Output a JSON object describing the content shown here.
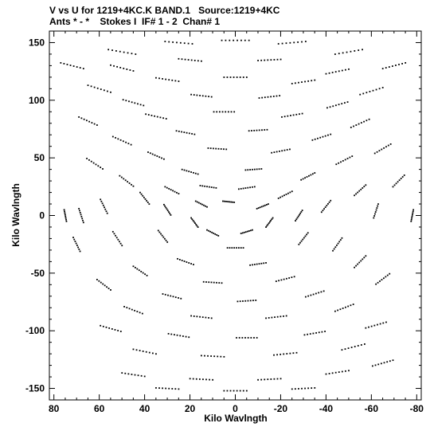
{
  "chart_data": {
    "type": "scatter",
    "title_line1": "V vs U for 1219+4KC.K BAND.1   Source:1219+4KC",
    "title_line2": "Ants * - *    Stokes I  IF# 1 - 2  Chan# 1",
    "xlabel": "Kilo Wavlngth",
    "ylabel": "Kilo Wavlngth",
    "xlim": [
      82,
      -82
    ],
    "ylim": [
      -160,
      160
    ],
    "x_ticks": [
      80,
      60,
      40,
      20,
      0,
      -20,
      -40,
      -60,
      -80
    ],
    "y_ticks": [
      150,
      100,
      50,
      0,
      -50,
      -100,
      -150
    ],
    "x_tick_labels": [
      "80",
      "60",
      "40",
      "20",
      "0",
      "-20",
      "-40",
      "-60",
      "-80"
    ],
    "y_tick_labels": [
      "150",
      "100",
      "50",
      "0",
      "-50",
      "-100",
      "-150"
    ],
    "grid": false,
    "legend": "none",
    "marker_color": "#000000",
    "uv_tracks": [
      {
        "u": 72,
        "v": 130,
        "du": 10,
        "dv": 5
      },
      {
        "u": 50,
        "v": 142,
        "du": 12,
        "dv": 4
      },
      {
        "u": 25,
        "v": 150,
        "du": 12,
        "dv": 2
      },
      {
        "u": 0,
        "v": 152,
        "du": 12,
        "dv": 0
      },
      {
        "u": -25,
        "v": 150,
        "du": 12,
        "dv": -2
      },
      {
        "u": -50,
        "v": 142,
        "du": 12,
        "dv": -4
      },
      {
        "u": -70,
        "v": 130,
        "du": 10,
        "dv": -5
      },
      {
        "u": 50,
        "v": 128,
        "du": 10,
        "dv": 5
      },
      {
        "u": 20,
        "v": 135,
        "du": 10,
        "dv": 2
      },
      {
        "u": -15,
        "v": 135,
        "du": 10,
        "dv": -1
      },
      {
        "u": -45,
        "v": 125,
        "du": 10,
        "dv": -4
      },
      {
        "u": 60,
        "v": 110,
        "du": 10,
        "dv": 6
      },
      {
        "u": 30,
        "v": 118,
        "du": 10,
        "dv": 3
      },
      {
        "u": 0,
        "v": 120,
        "du": 10,
        "dv": 0
      },
      {
        "u": -30,
        "v": 116,
        "du": 10,
        "dv": -3
      },
      {
        "u": -60,
        "v": 108,
        "du": 10,
        "dv": -6
      },
      {
        "u": 45,
        "v": 98,
        "du": 9,
        "dv": 5
      },
      {
        "u": 15,
        "v": 104,
        "du": 9,
        "dv": 2
      },
      {
        "u": -15,
        "v": 103,
        "du": 9,
        "dv": -2
      },
      {
        "u": -45,
        "v": 96,
        "du": 9,
        "dv": -5
      },
      {
        "u": 65,
        "v": 82,
        "du": 8,
        "dv": 7
      },
      {
        "u": 35,
        "v": 86,
        "du": 9,
        "dv": 4
      },
      {
        "u": 5,
        "v": 90,
        "du": 9,
        "dv": 0
      },
      {
        "u": -25,
        "v": 87,
        "du": 9,
        "dv": -3
      },
      {
        "u": -55,
        "v": 80,
        "du": 8,
        "dv": -7
      },
      {
        "u": 50,
        "v": 65,
        "du": 8,
        "dv": 7
      },
      {
        "u": 22,
        "v": 72,
        "du": 8,
        "dv": 3
      },
      {
        "u": -10,
        "v": 74,
        "du": 8,
        "dv": -1
      },
      {
        "u": -38,
        "v": 68,
        "du": 8,
        "dv": -5
      },
      {
        "u": -65,
        "v": 58,
        "du": 7,
        "dv": -8
      },
      {
        "u": 62,
        "v": 45,
        "du": 7,
        "dv": 9
      },
      {
        "u": 35,
        "v": 52,
        "du": 7,
        "dv": 6
      },
      {
        "u": 8,
        "v": 58,
        "du": 8,
        "dv": 1
      },
      {
        "u": -20,
        "v": 56,
        "du": 8,
        "dv": -3
      },
      {
        "u": -48,
        "v": 48,
        "du": 7,
        "dv": -7
      },
      {
        "u": -72,
        "v": 30,
        "du": 5,
        "dv": -10
      },
      {
        "u": 48,
        "v": 30,
        "du": 6,
        "dv": 9
      },
      {
        "u": 20,
        "v": 38,
        "du": 7,
        "dv": 4
      },
      {
        "u": -8,
        "v": 40,
        "du": 7,
        "dv": -1
      },
      {
        "u": -32,
        "v": 34,
        "du": 6,
        "dv": -6
      },
      {
        "u": -55,
        "v": 22,
        "du": 5,
        "dv": -9
      },
      {
        "u": 75,
        "v": 0,
        "du": 1,
        "dv": 10
      },
      {
        "u": 68,
        "v": 0,
        "du": 2,
        "dv": 12
      },
      {
        "u": 58,
        "v": 8,
        "du": 3,
        "dv": 12
      },
      {
        "u": 40,
        "v": 15,
        "du": 4,
        "dv": 10
      },
      {
        "u": 28,
        "v": 22,
        "du": 6,
        "dv": 6
      },
      {
        "u": 12,
        "v": 25,
        "du": 7,
        "dv": 2
      },
      {
        "u": -5,
        "v": 24,
        "du": 7,
        "dv": -2
      },
      {
        "u": -22,
        "v": 18,
        "du": 6,
        "dv": -6
      },
      {
        "u": -40,
        "v": 8,
        "du": 4,
        "dv": -10
      },
      {
        "u": -62,
        "v": 4,
        "du": 2,
        "dv": -12
      },
      {
        "u": -78,
        "v": 0,
        "du": 1,
        "dv": -10
      },
      {
        "u": 30,
        "v": 5,
        "du": 3,
        "dv": 9
      },
      {
        "u": 15,
        "v": 10,
        "du": 5,
        "dv": 5
      },
      {
        "u": 3,
        "v": 12,
        "du": 5,
        "dv": 1
      },
      {
        "u": -12,
        "v": 8,
        "du": 5,
        "dv": -4
      },
      {
        "u": -28,
        "v": 0,
        "du": 3,
        "dv": -9
      },
      {
        "u": 18,
        "v": -6,
        "du": 3,
        "dv": 8
      },
      {
        "u": -15,
        "v": -6,
        "du": 3,
        "dv": -8
      },
      {
        "u": 10,
        "v": -15,
        "du": 5,
        "dv": 5
      },
      {
        "u": -5,
        "v": -14,
        "du": 5,
        "dv": -3
      },
      {
        "u": 32,
        "v": -18,
        "du": 4,
        "dv": 10
      },
      {
        "u": 0,
        "v": -28,
        "du": 7,
        "dv": 0
      },
      {
        "u": -30,
        "v": -20,
        "du": 4,
        "dv": -10
      },
      {
        "u": 52,
        "v": -20,
        "du": 4,
        "dv": 12
      },
      {
        "u": 22,
        "v": -40,
        "du": 7,
        "dv": 5
      },
      {
        "u": -10,
        "v": -42,
        "du": 7,
        "dv": -2
      },
      {
        "u": -45,
        "v": -25,
        "du": 4,
        "dv": -11
      },
      {
        "u": 70,
        "v": -25,
        "du": 3,
        "dv": 12
      },
      {
        "u": 42,
        "v": -48,
        "du": 6,
        "dv": 8
      },
      {
        "u": 10,
        "v": -58,
        "du": 8,
        "dv": 1
      },
      {
        "u": -22,
        "v": -55,
        "du": 8,
        "dv": -4
      },
      {
        "u": -55,
        "v": -40,
        "du": 5,
        "dv": -10
      },
      {
        "u": 58,
        "v": -60,
        "du": 6,
        "dv": 9
      },
      {
        "u": 28,
        "v": -70,
        "du": 8,
        "dv": 4
      },
      {
        "u": -5,
        "v": -74,
        "du": 8,
        "dv": -1
      },
      {
        "u": -35,
        "v": -68,
        "du": 8,
        "dv": -5
      },
      {
        "u": -65,
        "v": -55,
        "du": 6,
        "dv": -9
      },
      {
        "u": 45,
        "v": -82,
        "du": 8,
        "dv": 6
      },
      {
        "u": 15,
        "v": -88,
        "du": 9,
        "dv": 2
      },
      {
        "u": -18,
        "v": -88,
        "du": 9,
        "dv": -2
      },
      {
        "u": -48,
        "v": -80,
        "du": 8,
        "dv": -6
      },
      {
        "u": 55,
        "v": -98,
        "du": 9,
        "dv": 5
      },
      {
        "u": 25,
        "v": -104,
        "du": 9,
        "dv": 3
      },
      {
        "u": -5,
        "v": -106,
        "du": 9,
        "dv": 0
      },
      {
        "u": -35,
        "v": -102,
        "du": 9,
        "dv": -3
      },
      {
        "u": -62,
        "v": -95,
        "du": 9,
        "dv": -5
      },
      {
        "u": 40,
        "v": -118,
        "du": 10,
        "dv": 4
      },
      {
        "u": 10,
        "v": -122,
        "du": 10,
        "dv": 1
      },
      {
        "u": -22,
        "v": -120,
        "du": 10,
        "dv": -2
      },
      {
        "u": -52,
        "v": -114,
        "du": 10,
        "dv": -5
      },
      {
        "u": 45,
        "v": -138,
        "du": 10,
        "dv": 3
      },
      {
        "u": 15,
        "v": -142,
        "du": 10,
        "dv": 1
      },
      {
        "u": -15,
        "v": -142,
        "du": 10,
        "dv": -1
      },
      {
        "u": -45,
        "v": -136,
        "du": 10,
        "dv": -3
      },
      {
        "u": -65,
        "v": -128,
        "du": 9,
        "dv": -5
      },
      {
        "u": 30,
        "v": -150,
        "du": 10,
        "dv": 1
      },
      {
        "u": 0,
        "v": -152,
        "du": 10,
        "dv": 0
      },
      {
        "u": -30,
        "v": -150,
        "du": 10,
        "dv": -1
      }
    ]
  }
}
